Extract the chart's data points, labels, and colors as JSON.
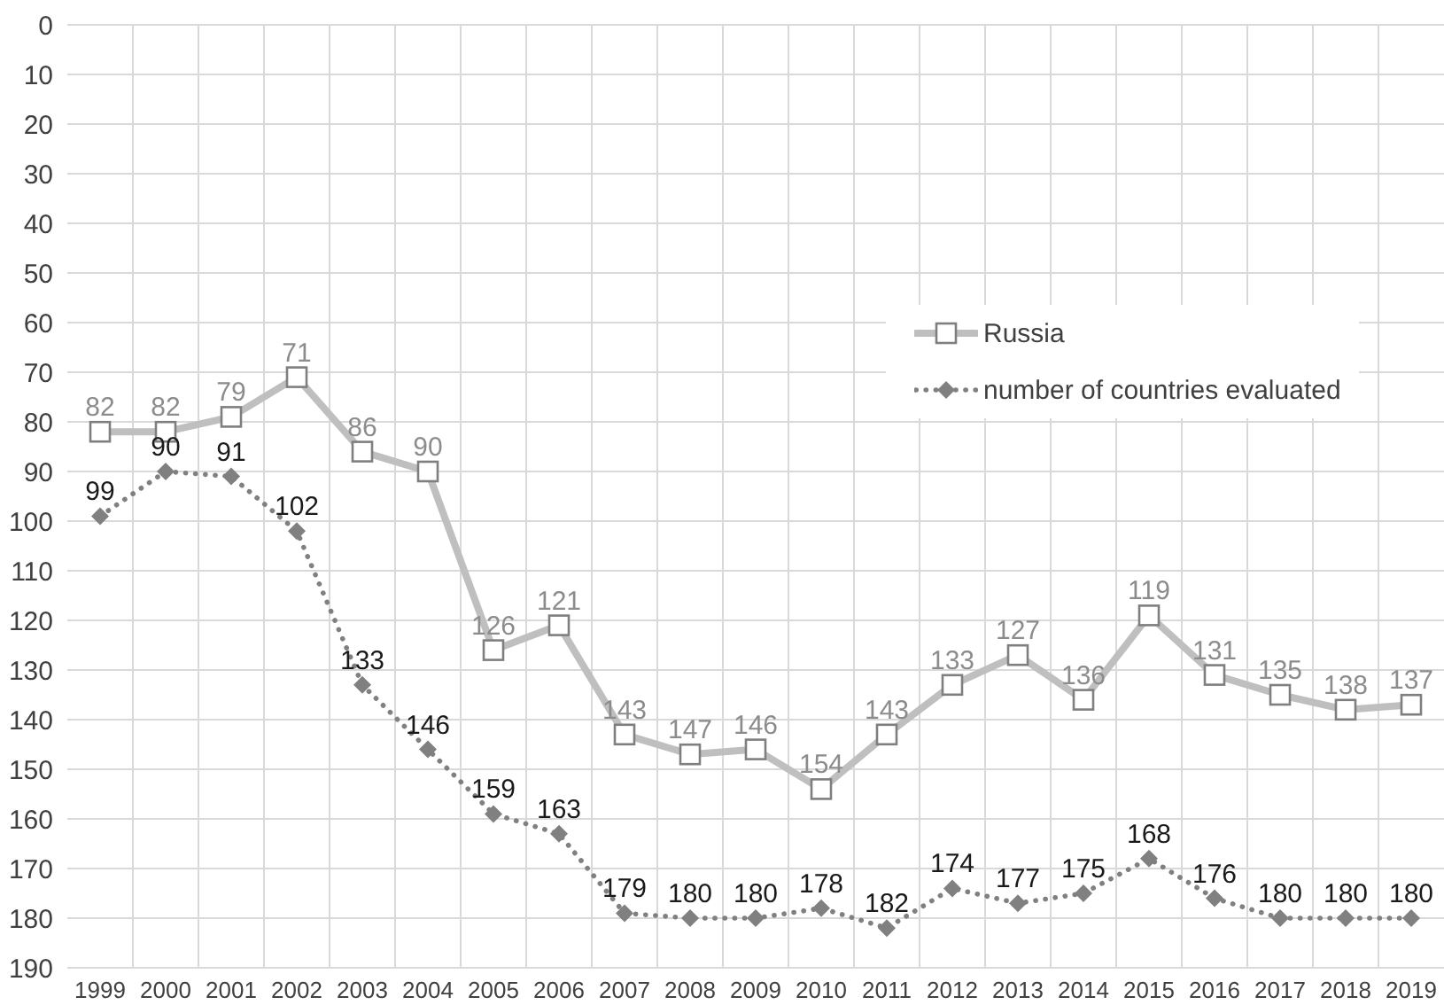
{
  "chart_data": {
    "type": "line",
    "categories": [
      "1999",
      "2000",
      "2001",
      "2002",
      "2003",
      "2004",
      "2005",
      "2006",
      "2007",
      "2008",
      "2009",
      "2010",
      "2011",
      "2012",
      "2013",
      "2014",
      "2015",
      "2016",
      "2017",
      "2018",
      "2019"
    ],
    "series": [
      {
        "name": "Russia",
        "color": "#bfbfbf",
        "marker": "square",
        "line_style": "solid",
        "values": [
          82,
          82,
          79,
          71,
          86,
          90,
          126,
          121,
          143,
          147,
          146,
          154,
          143,
          133,
          127,
          136,
          119,
          131,
          135,
          138,
          137
        ]
      },
      {
        "name": "number of countries evaluated",
        "color": "#808080",
        "marker": "diamond",
        "line_style": "dotted",
        "values": [
          99,
          90,
          91,
          102,
          133,
          146,
          159,
          163,
          179,
          180,
          180,
          178,
          182,
          174,
          177,
          175,
          168,
          176,
          180,
          180,
          180
        ]
      }
    ],
    "ylim": [
      190,
      0
    ],
    "yticks": [
      0,
      10,
      20,
      30,
      40,
      50,
      60,
      70,
      80,
      90,
      100,
      110,
      120,
      130,
      140,
      150,
      160,
      170,
      180,
      190
    ],
    "grid": true,
    "legend": "right",
    "data_labels": true
  }
}
